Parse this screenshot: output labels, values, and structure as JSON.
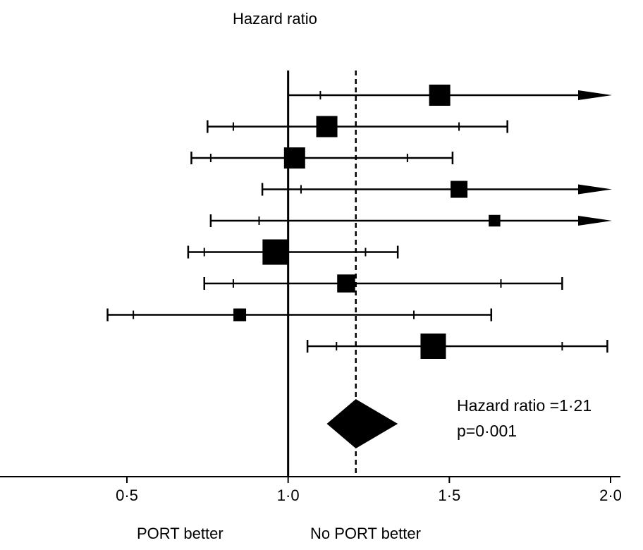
{
  "chart_data": {
    "type": "forest",
    "title": "Hazard ratio",
    "x_ticks": [
      {
        "value": 0.5,
        "label": "0·5"
      },
      {
        "value": 1.0,
        "label": "1·0"
      },
      {
        "value": 1.5,
        "label": "1·5"
      },
      {
        "value": 2.0,
        "label": "2·0"
      }
    ],
    "xlim": [
      0.0,
      2.0
    ],
    "reference_line": 1.0,
    "pooled_line": 1.21,
    "studies": [
      {
        "hr": 1.47,
        "ci95": [
          1.0,
          2.0
        ],
        "ci_inner": [
          1.1,
          2.0
        ],
        "arrow": true,
        "size": 1.0
      },
      {
        "hr": 1.12,
        "ci95": [
          0.75,
          1.68
        ],
        "ci_inner": [
          0.83,
          1.53
        ],
        "arrow": false,
        "size": 1.0
      },
      {
        "hr": 1.02,
        "ci95": [
          0.7,
          1.51
        ],
        "ci_inner": [
          0.76,
          1.37
        ],
        "arrow": false,
        "size": 1.0
      },
      {
        "hr": 1.53,
        "ci95": [
          0.92,
          2.0
        ],
        "ci_inner": [
          1.04,
          2.0
        ],
        "arrow": true,
        "size": 0.8
      },
      {
        "hr": 1.64,
        "ci95": [
          0.76,
          2.0
        ],
        "ci_inner": [
          0.91,
          2.0
        ],
        "arrow": true,
        "size": 0.55
      },
      {
        "hr": 0.96,
        "ci95": [
          0.69,
          1.34
        ],
        "ci_inner": [
          0.74,
          1.24
        ],
        "arrow": false,
        "size": 1.2
      },
      {
        "hr": 1.18,
        "ci95": [
          0.74,
          1.85
        ],
        "ci_inner": [
          0.83,
          1.66
        ],
        "arrow": false,
        "size": 0.85
      },
      {
        "hr": 0.85,
        "ci95": [
          0.44,
          1.63
        ],
        "ci_inner": [
          0.52,
          1.39
        ],
        "arrow": false,
        "size": 0.6
      },
      {
        "hr": 1.45,
        "ci95": [
          1.06,
          1.99
        ],
        "ci_inner": [
          1.15,
          1.85
        ],
        "arrow": false,
        "size": 1.2
      }
    ],
    "pooled": {
      "hr": 1.21,
      "ci": [
        1.12,
        1.34
      ]
    },
    "summary_lines": [
      "Hazard ratio =1·21",
      "p=0·001"
    ],
    "direction_labels": {
      "left": "PORT better",
      "right": "No PORT better"
    }
  }
}
